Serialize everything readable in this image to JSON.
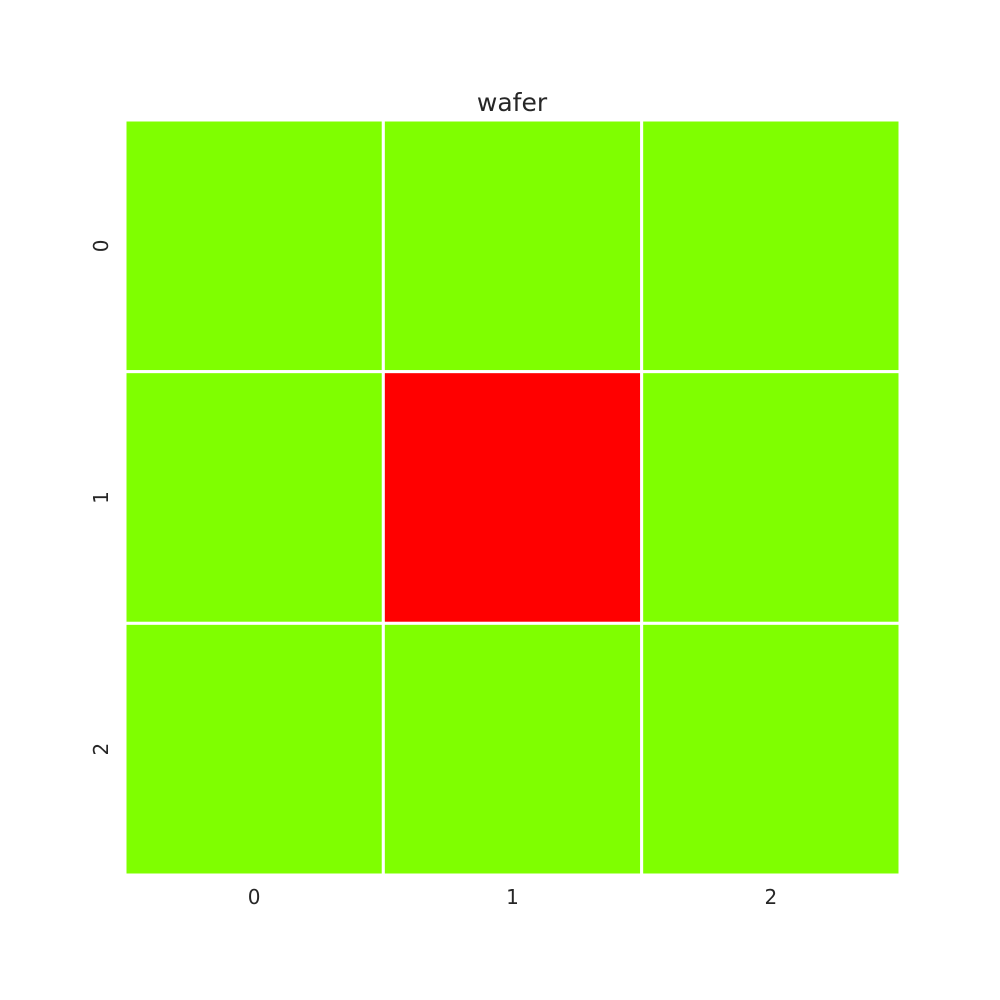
{
  "chart_data": {
    "type": "heatmap",
    "title": "wafer",
    "xlabel": "",
    "ylabel": "",
    "x_categories": [
      "0",
      "1",
      "2"
    ],
    "y_categories": [
      "0",
      "1",
      "2"
    ],
    "values": [
      [
        0,
        0,
        0
      ],
      [
        0,
        1,
        0
      ],
      [
        0,
        0,
        0
      ]
    ],
    "value_colors": {
      "0": "#7fff00",
      "1": "#ff0000"
    },
    "cell_border_color": "#ffffff",
    "colorbar": false,
    "grid": false
  }
}
